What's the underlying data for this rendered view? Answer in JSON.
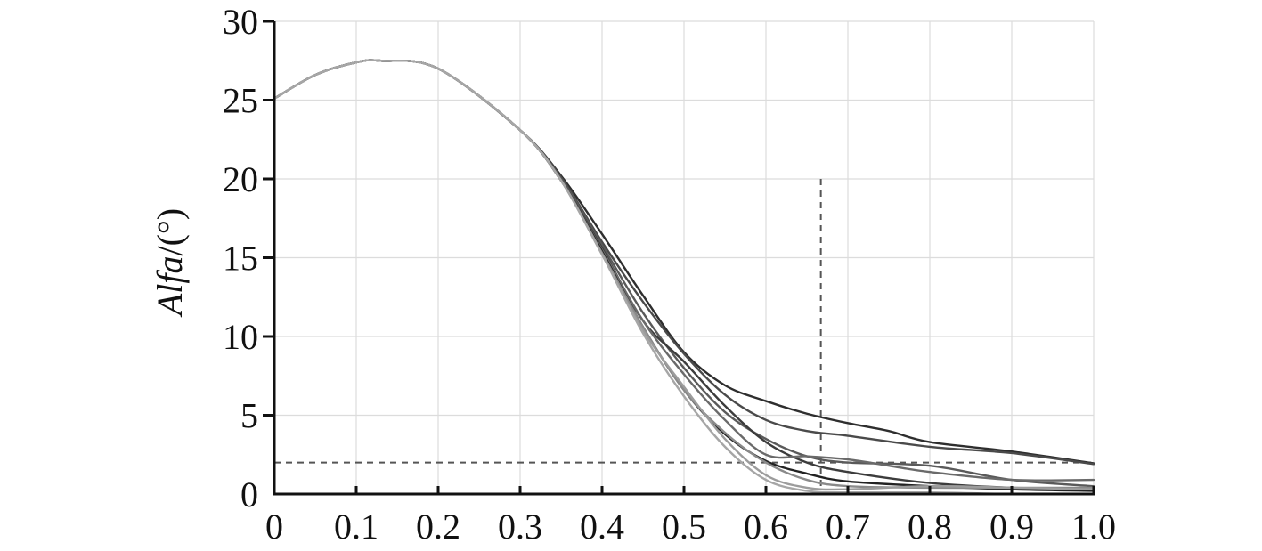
{
  "chart_data": {
    "type": "line",
    "title": "",
    "xlabel": "",
    "ylabel": "Alfa/(°)",
    "ylabel_parts": {
      "italic": "Alfa",
      "unit": "/(°)"
    },
    "xlim": [
      0,
      1.0
    ],
    "ylim": [
      0,
      30
    ],
    "x_ticks": [
      0,
      0.1,
      0.2,
      0.3,
      0.4,
      0.5,
      0.6,
      0.7,
      0.8,
      0.9,
      1.0
    ],
    "x_tick_labels": [
      "0",
      "0.1",
      "0.2",
      "0.3",
      "0.4",
      "0.5",
      "0.6",
      "0.7",
      "0.8",
      "0.9",
      "1.0"
    ],
    "y_ticks": [
      0,
      5,
      10,
      15,
      20,
      25,
      30
    ],
    "y_tick_labels": [
      "0",
      "5",
      "10",
      "15",
      "20",
      "25",
      "30"
    ],
    "grid": true,
    "legend": "none",
    "reference_lines": [
      {
        "orientation": "horizontal",
        "y": 2,
        "x_range": [
          0,
          1.0
        ],
        "style": "dashed"
      },
      {
        "orientation": "vertical",
        "x": 0.667,
        "y_range": [
          0,
          20
        ],
        "style": "dashed"
      }
    ],
    "series": [
      {
        "color": "#2e2e2e",
        "points": [
          [
            0,
            25.1
          ],
          [
            0.05,
            26.6
          ],
          [
            0.1,
            27.4
          ],
          [
            0.13,
            27.5
          ],
          [
            0.2,
            27.0
          ],
          [
            0.3,
            23.1
          ],
          [
            0.35,
            20.2
          ],
          [
            0.4,
            16.5
          ],
          [
            0.45,
            12.6
          ],
          [
            0.5,
            9.0
          ],
          [
            0.55,
            6.9
          ],
          [
            0.6,
            5.9
          ],
          [
            0.65,
            5.1
          ],
          [
            0.7,
            4.5
          ],
          [
            0.75,
            4.0
          ],
          [
            0.8,
            3.3
          ],
          [
            0.9,
            2.7
          ],
          [
            1.0,
            1.95
          ]
        ]
      },
      {
        "color": "#4a4a4a",
        "points": [
          [
            0,
            25.1
          ],
          [
            0.05,
            26.6
          ],
          [
            0.1,
            27.4
          ],
          [
            0.13,
            27.5
          ],
          [
            0.2,
            27.0
          ],
          [
            0.3,
            23.1
          ],
          [
            0.35,
            20.1
          ],
          [
            0.4,
            16.0
          ],
          [
            0.45,
            12.2
          ],
          [
            0.5,
            8.9
          ],
          [
            0.55,
            6.3
          ],
          [
            0.6,
            4.7
          ],
          [
            0.65,
            4.0
          ],
          [
            0.7,
            3.7
          ],
          [
            0.8,
            3.0
          ],
          [
            0.9,
            2.6
          ],
          [
            1.0,
            1.9
          ]
        ]
      },
      {
        "color": "#5a5a5a",
        "points": [
          [
            0,
            25.1
          ],
          [
            0.05,
            26.6
          ],
          [
            0.1,
            27.4
          ],
          [
            0.13,
            27.5
          ],
          [
            0.2,
            27.0
          ],
          [
            0.3,
            23.1
          ],
          [
            0.35,
            20.0
          ],
          [
            0.4,
            15.8
          ],
          [
            0.45,
            11.5
          ],
          [
            0.5,
            8.0
          ],
          [
            0.55,
            5.2
          ],
          [
            0.6,
            3.5
          ],
          [
            0.65,
            2.4
          ],
          [
            0.7,
            2.0
          ],
          [
            0.8,
            1.8
          ],
          [
            0.9,
            0.9
          ],
          [
            1.0,
            0.5
          ]
        ]
      },
      {
        "color": "#3c3c3c",
        "points": [
          [
            0,
            25.1
          ],
          [
            0.05,
            26.6
          ],
          [
            0.1,
            27.4
          ],
          [
            0.13,
            27.5
          ],
          [
            0.2,
            27.0
          ],
          [
            0.3,
            23.1
          ],
          [
            0.35,
            19.9
          ],
          [
            0.4,
            15.6
          ],
          [
            0.45,
            11.0
          ],
          [
            0.5,
            8.4
          ],
          [
            0.55,
            5.6
          ],
          [
            0.6,
            3.3
          ],
          [
            0.65,
            2.0
          ],
          [
            0.7,
            1.4
          ],
          [
            0.8,
            0.7
          ],
          [
            0.9,
            0.4
          ],
          [
            1.0,
            0.3
          ]
        ]
      },
      {
        "color": "#6a6a6a",
        "points": [
          [
            0,
            25.1
          ],
          [
            0.05,
            26.6
          ],
          [
            0.1,
            27.4
          ],
          [
            0.13,
            27.5
          ],
          [
            0.2,
            27.0
          ],
          [
            0.3,
            23.1
          ],
          [
            0.35,
            19.9
          ],
          [
            0.4,
            15.5
          ],
          [
            0.45,
            11.0
          ],
          [
            0.5,
            7.6
          ],
          [
            0.55,
            4.7
          ],
          [
            0.6,
            2.5
          ],
          [
            0.65,
            2.4
          ],
          [
            0.7,
            2.2
          ],
          [
            0.75,
            1.8
          ],
          [
            0.8,
            1.4
          ],
          [
            0.9,
            0.9
          ],
          [
            1.0,
            0.9
          ]
        ]
      },
      {
        "color": "#222222",
        "points": [
          [
            0,
            25.1
          ],
          [
            0.05,
            26.6
          ],
          [
            0.1,
            27.4
          ],
          [
            0.13,
            27.5
          ],
          [
            0.2,
            27.0
          ],
          [
            0.3,
            23.1
          ],
          [
            0.35,
            19.9
          ],
          [
            0.4,
            15.4
          ],
          [
            0.45,
            10.6
          ],
          [
            0.5,
            6.6
          ],
          [
            0.55,
            3.8
          ],
          [
            0.6,
            2.1
          ],
          [
            0.65,
            1.3
          ],
          [
            0.7,
            0.8
          ],
          [
            0.8,
            0.5
          ],
          [
            0.9,
            0.3
          ],
          [
            1.0,
            0.2
          ]
        ]
      },
      {
        "color": "#8a8a8a",
        "points": [
          [
            0,
            25.1
          ],
          [
            0.05,
            26.6
          ],
          [
            0.1,
            27.4
          ],
          [
            0.13,
            27.5
          ],
          [
            0.2,
            27.0
          ],
          [
            0.3,
            23.1
          ],
          [
            0.35,
            19.9
          ],
          [
            0.4,
            15.3
          ],
          [
            0.45,
            10.6
          ],
          [
            0.5,
            6.6
          ],
          [
            0.55,
            3.9
          ],
          [
            0.6,
            2.0
          ],
          [
            0.65,
            0.9
          ],
          [
            0.7,
            0.5
          ],
          [
            0.8,
            0.4
          ],
          [
            0.9,
            0.4
          ],
          [
            1.0,
            0.4
          ]
        ]
      },
      {
        "color": "#9c9c9c",
        "points": [
          [
            0,
            25.1
          ],
          [
            0.05,
            26.6
          ],
          [
            0.1,
            27.4
          ],
          [
            0.13,
            27.5
          ],
          [
            0.2,
            27.0
          ],
          [
            0.3,
            23.1
          ],
          [
            0.35,
            19.9
          ],
          [
            0.4,
            15.2
          ],
          [
            0.45,
            10.4
          ],
          [
            0.5,
            6.8
          ],
          [
            0.55,
            3.5
          ],
          [
            0.6,
            1.2
          ],
          [
            0.65,
            0.4
          ],
          [
            0.7,
            0.3
          ],
          [
            0.8,
            0.5
          ],
          [
            0.9,
            0.4
          ],
          [
            1.0,
            0.3
          ]
        ]
      },
      {
        "color": "#a6a6a6",
        "points": [
          [
            0,
            25.1
          ],
          [
            0.05,
            26.6
          ],
          [
            0.1,
            27.4
          ],
          [
            0.13,
            27.5
          ],
          [
            0.2,
            27.0
          ],
          [
            0.3,
            23.1
          ],
          [
            0.35,
            19.9
          ],
          [
            0.4,
            15.2
          ],
          [
            0.45,
            10.2
          ],
          [
            0.5,
            6.2
          ],
          [
            0.55,
            3.0
          ],
          [
            0.6,
            0.9
          ],
          [
            0.65,
            0.2
          ],
          [
            0.7,
            0.1
          ],
          [
            0.8,
            0.1
          ],
          [
            0.9,
            0.0
          ],
          [
            1.0,
            0.0
          ]
        ]
      }
    ]
  }
}
